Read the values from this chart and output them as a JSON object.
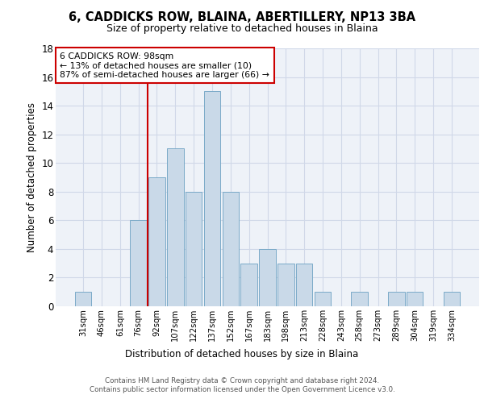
{
  "title1": "6, CADDICKS ROW, BLAINA, ABERTILLERY, NP13 3BA",
  "title2": "Size of property relative to detached houses in Blaina",
  "xlabel": "Distribution of detached houses by size in Blaina",
  "ylabel": "Number of detached properties",
  "categories": [
    "31sqm",
    "46sqm",
    "61sqm",
    "76sqm",
    "92sqm",
    "107sqm",
    "122sqm",
    "137sqm",
    "152sqm",
    "167sqm",
    "183sqm",
    "198sqm",
    "213sqm",
    "228sqm",
    "243sqm",
    "258sqm",
    "273sqm",
    "289sqm",
    "304sqm",
    "319sqm",
    "334sqm"
  ],
  "values": [
    1,
    0,
    0,
    6,
    9,
    11,
    8,
    15,
    8,
    3,
    4,
    3,
    3,
    1,
    0,
    1,
    0,
    1,
    1,
    0,
    1
  ],
  "bar_color": "#c9d9e8",
  "bar_edge_color": "#7aaac8",
  "vline_x_idx": 3.5,
  "vline_color": "#cc0000",
  "annotation_text": "6 CADDICKS ROW: 98sqm\n← 13% of detached houses are smaller (10)\n87% of semi-detached houses are larger (66) →",
  "annotation_box_color": "#ffffff",
  "annotation_box_edge_color": "#cc0000",
  "ylim": [
    0,
    18
  ],
  "yticks": [
    0,
    2,
    4,
    6,
    8,
    10,
    12,
    14,
    16,
    18
  ],
  "grid_color": "#d0d8e8",
  "background_color": "#eef2f8",
  "footer": "Contains HM Land Registry data © Crown copyright and database right 2024.\nContains public sector information licensed under the Open Government Licence v3.0."
}
